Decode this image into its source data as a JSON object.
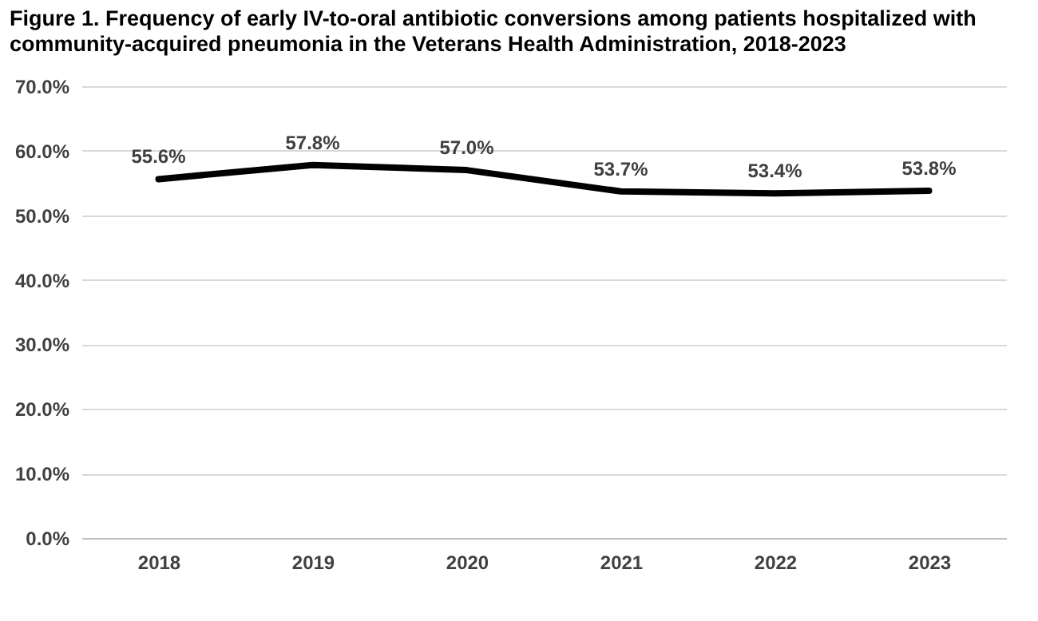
{
  "chart_data": {
    "type": "line",
    "title": "Figure 1. Frequency of early IV-to-oral antibiotic conversions among patients hospitalized with community-acquired pneumonia in the Veterans Health Administration, 2018-2023",
    "categories": [
      "2018",
      "2019",
      "2020",
      "2021",
      "2022",
      "2023"
    ],
    "series": [
      {
        "color": "#000000",
        "values": [
          55.6,
          57.8,
          57.0,
          53.7,
          53.4,
          53.8
        ],
        "value_labels": [
          "55.6%",
          "57.8%",
          "57.0%",
          "53.7%",
          "53.4%",
          "53.8%"
        ]
      }
    ],
    "ylim": [
      0,
      70
    ],
    "yticks": [
      {
        "value": 0,
        "label": "0.0%"
      },
      {
        "value": 10,
        "label": "10.0%"
      },
      {
        "value": 20,
        "label": "20.0%"
      },
      {
        "value": 30,
        "label": "30.0%"
      },
      {
        "value": 40,
        "label": "40.0%"
      },
      {
        "value": 50,
        "label": "50.0%"
      },
      {
        "value": 60,
        "label": "60.0%"
      },
      {
        "value": 70,
        "label": "70.0%"
      }
    ],
    "grid": "y"
  }
}
